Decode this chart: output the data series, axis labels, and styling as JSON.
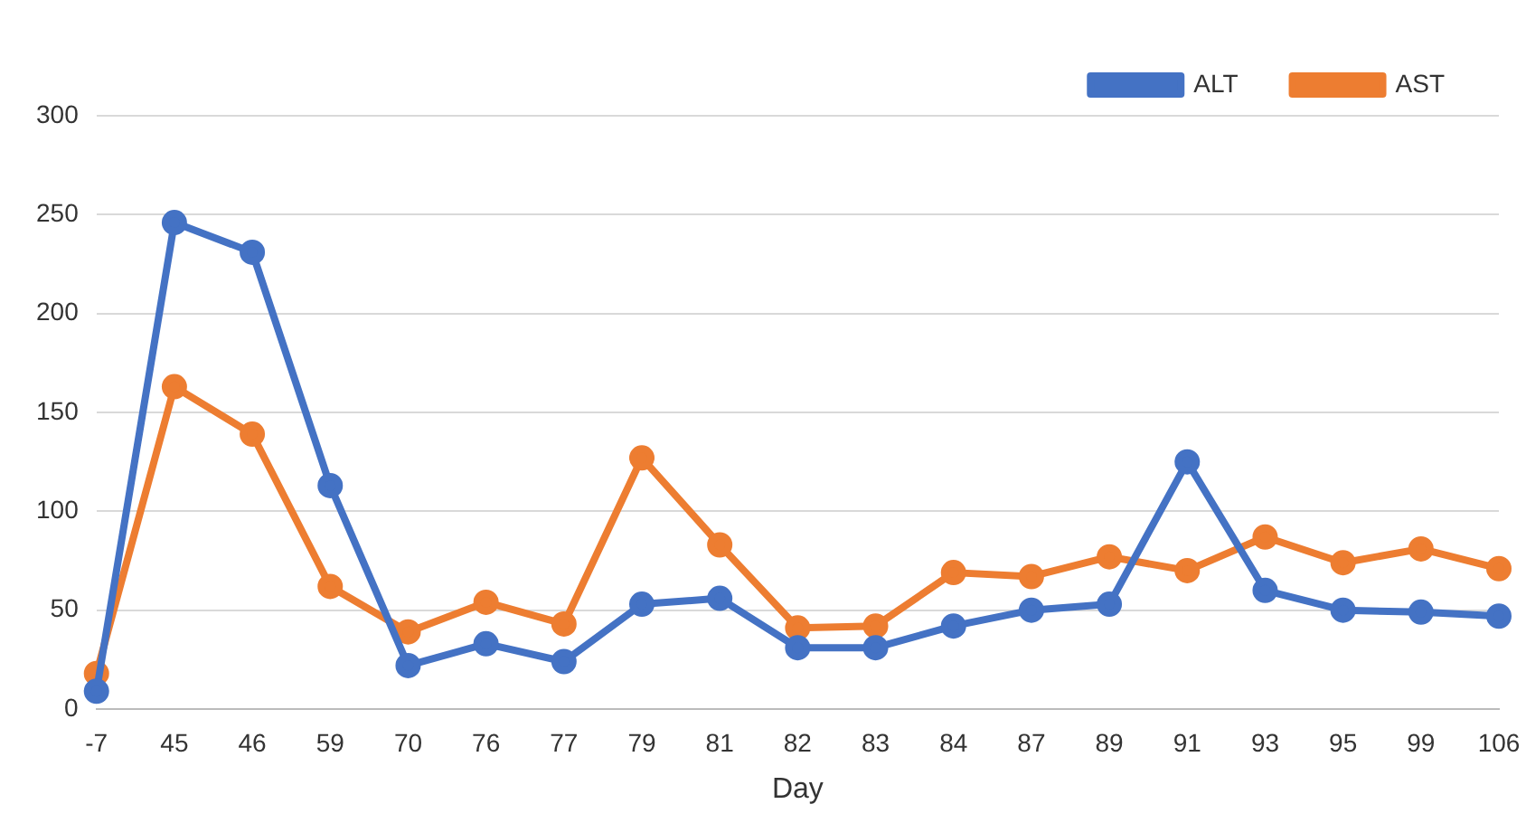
{
  "chart_data": {
    "type": "line",
    "xlabel": "Day",
    "categories": [
      "-7",
      "45",
      "46",
      "59",
      "70",
      "76",
      "77",
      "79",
      "81",
      "82",
      "83",
      "84",
      "87",
      "89",
      "91",
      "93",
      "95",
      "99",
      "106"
    ],
    "series": [
      {
        "name": "ALT",
        "color": "#4472c4",
        "values": [
          9,
          246,
          231,
          113,
          22,
          33,
          24,
          53,
          56,
          31,
          31,
          42,
          50,
          53,
          125,
          60,
          50,
          49,
          47
        ]
      },
      {
        "name": "AST",
        "color": "#ed7d31",
        "values": [
          18,
          163,
          139,
          62,
          39,
          54,
          43,
          127,
          83,
          41,
          42,
          69,
          67,
          77,
          70,
          87,
          74,
          81,
          71
        ]
      }
    ],
    "ylim": [
      0,
      300
    ],
    "yticks": [
      0,
      50,
      100,
      150,
      200,
      250,
      300
    ],
    "grid": "y",
    "legend": "top right",
    "marker": "circle",
    "line_style": "solid"
  }
}
